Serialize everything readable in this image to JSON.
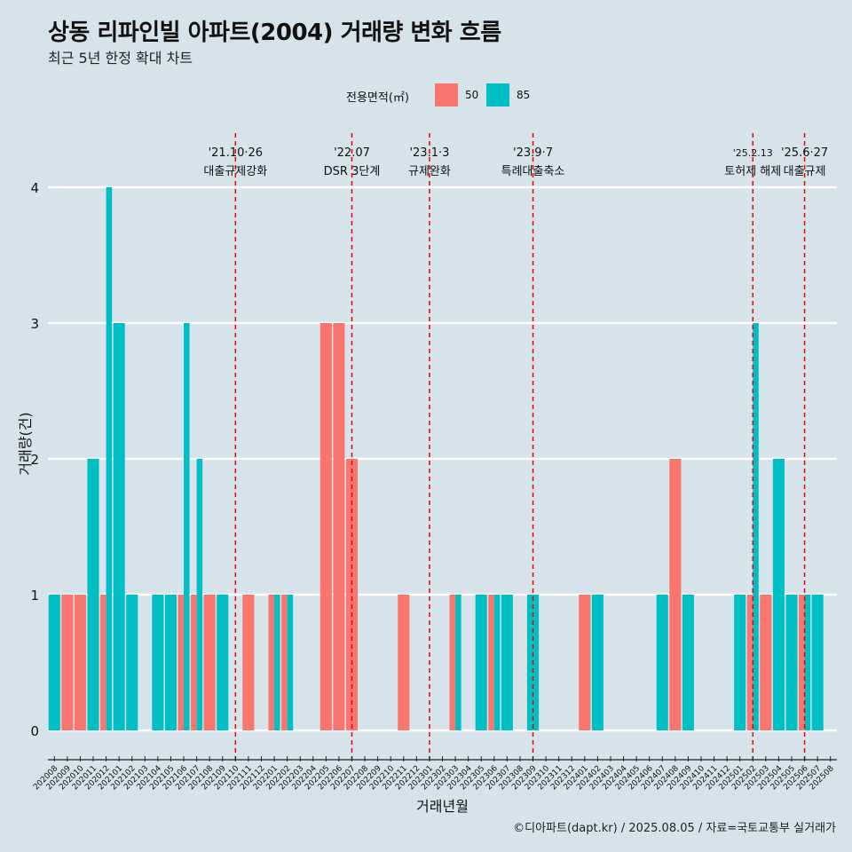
{
  "title": "상동 리파인빌 아파트(2004) 거래량 변화 흐름",
  "subtitle": "최근 5년 한정 확대 차트",
  "caption": "©디아파트(dapt.kr) / 2025.08.05 / 자료=국토교통부 실거래가",
  "colors": {
    "s50": "#f8766d",
    "s85": "#00bfc4",
    "vline": "#ee0000",
    "background": "#d6e3ea",
    "grid": "#ffffff"
  },
  "chart_data": {
    "type": "bar",
    "title": "상동 리파인빌 아파트(2004) 거래량 변화 흐름",
    "subtitle": "최근 5년 한정 확대 차트",
    "xlabel": "거래년월",
    "ylabel": "거래량(건)",
    "legend_title": "전용면적(㎡)",
    "legend_position": "top",
    "ylim": [
      0,
      4
    ],
    "yticks": [
      0,
      1,
      2,
      3,
      4
    ],
    "grid": true,
    "categories": [
      "202008",
      "202009",
      "202010",
      "202011",
      "202012",
      "202101",
      "202102",
      "202103",
      "202104",
      "202105",
      "202106",
      "202107",
      "202108",
      "202109",
      "202110",
      "202111",
      "202112",
      "202201",
      "202202",
      "202203",
      "202204",
      "202205",
      "202206",
      "202207",
      "202208",
      "202209",
      "202210",
      "202211",
      "202212",
      "202301",
      "202302",
      "202303",
      "202304",
      "202305",
      "202306",
      "202307",
      "202308",
      "202309",
      "202310",
      "202311",
      "202312",
      "202401",
      "202402",
      "202403",
      "202404",
      "202405",
      "202406",
      "202407",
      "202408",
      "202409",
      "202410",
      "202411",
      "202412",
      "202501",
      "202502",
      "202503",
      "202504",
      "202505",
      "202506",
      "202507",
      "202508"
    ],
    "series": [
      {
        "name": "50",
        "values": [
          0,
          1,
          1,
          0,
          1,
          0,
          0,
          0,
          0,
          0,
          1,
          1,
          1,
          0,
          0,
          1,
          0,
          1,
          1,
          0,
          0,
          3,
          3,
          2,
          0,
          0,
          0,
          1,
          0,
          0,
          0,
          1,
          0,
          0,
          1,
          0,
          0,
          0,
          0,
          0,
          0,
          1,
          0,
          0,
          0,
          0,
          0,
          0,
          2,
          0,
          0,
          0,
          0,
          0,
          1,
          1,
          0,
          0,
          1,
          0,
          0
        ]
      },
      {
        "name": "85",
        "values": [
          1,
          0,
          0,
          2,
          4,
          3,
          1,
          0,
          1,
          1,
          3,
          2,
          0,
          1,
          0,
          0,
          0,
          1,
          1,
          0,
          0,
          0,
          0,
          0,
          0,
          0,
          0,
          0,
          0,
          0,
          0,
          1,
          0,
          1,
          1,
          1,
          0,
          1,
          0,
          0,
          0,
          0,
          1,
          0,
          0,
          0,
          0,
          1,
          0,
          1,
          0,
          0,
          0,
          1,
          3,
          0,
          2,
          1,
          1,
          1,
          0
        ]
      }
    ],
    "annotations": [
      {
        "at": "202110",
        "date": "'21.10·26",
        "label": "대출규제강화"
      },
      {
        "at": "202207",
        "date": "'22.07",
        "label": "DSR 3단계"
      },
      {
        "at": "202301",
        "date": "'23.1·3",
        "label": "규제완화"
      },
      {
        "at": "202309",
        "date": "'23.9·7",
        "label": "특례대출축소"
      },
      {
        "at": "202502",
        "date": "'25.2.13",
        "label": "토허제 해제"
      },
      {
        "at": "202506",
        "date": "'25.6·27",
        "label": "대출규제"
      }
    ]
  }
}
